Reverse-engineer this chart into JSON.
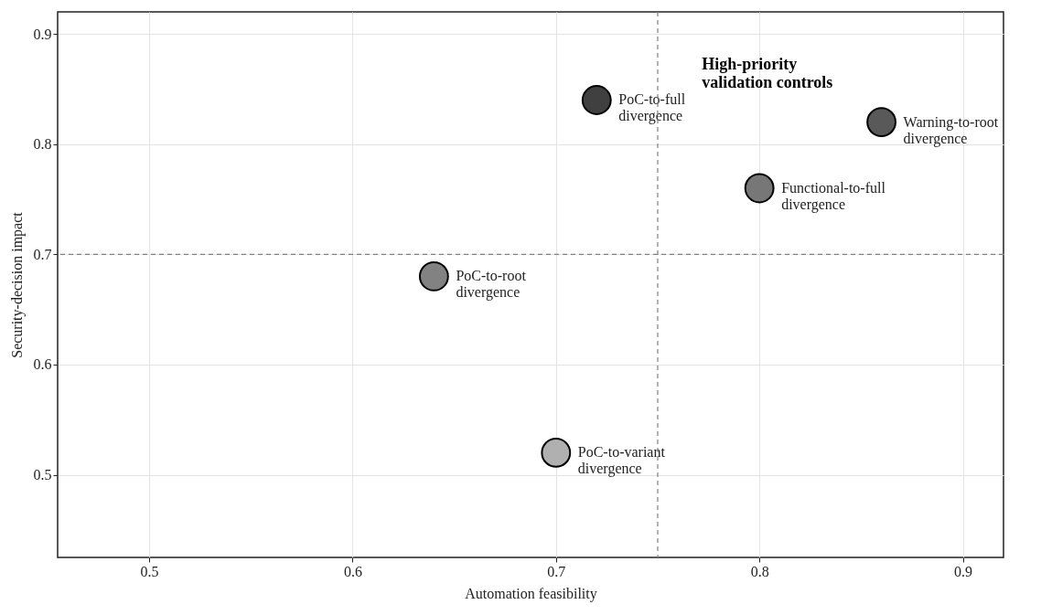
{
  "chart_data": {
    "type": "scatter",
    "xlabel": "Automation feasibility",
    "ylabel": "Security-decision impact",
    "xlim": [
      0.455,
      0.92
    ],
    "ylim": [
      0.425,
      0.92
    ],
    "xticks": [
      0.5,
      0.6,
      0.7,
      0.8,
      0.9
    ],
    "yticks": [
      0.5,
      0.6,
      0.7,
      0.8,
      0.9
    ],
    "grid": true,
    "legend": false,
    "marker": "circle",
    "series": [
      {
        "name": "PoC-to-full divergence",
        "color": "#404040",
        "x": [
          0.72
        ],
        "values": [
          0.84
        ]
      },
      {
        "name": "Warning-to-root divergence",
        "color": "#595959",
        "x": [
          0.86
        ],
        "values": [
          0.82
        ]
      },
      {
        "name": "Functional-to-full divergence",
        "color": "#777777",
        "x": [
          0.8
        ],
        "values": [
          0.76
        ]
      },
      {
        "name": "PoC-to-root divergence",
        "color": "#828282",
        "x": [
          0.64
        ],
        "values": [
          0.68
        ]
      },
      {
        "name": "PoC-to-variant divergence",
        "color": "#b0b0b0",
        "x": [
          0.7
        ],
        "values": [
          0.52
        ]
      }
    ],
    "ref_lines": [
      {
        "axis": "x",
        "value": 0.75,
        "color": "#808080",
        "line_style": "dashed"
      },
      {
        "axis": "y",
        "value": 0.7,
        "color": "#808080",
        "line_style": "dashed"
      }
    ],
    "annotations": [
      "High-priority\nvalidation controls"
    ]
  }
}
